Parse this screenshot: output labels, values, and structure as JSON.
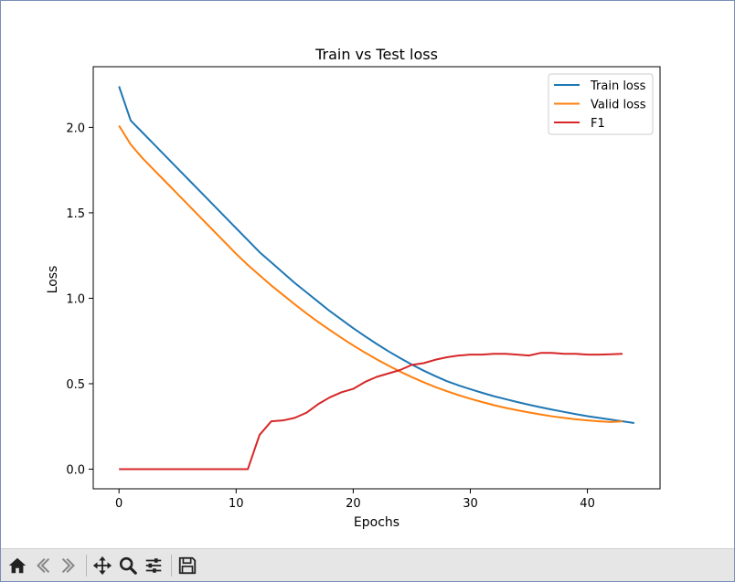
{
  "chart_data": {
    "type": "line",
    "title": "Train vs Test loss",
    "xlabel": "Epochs",
    "ylabel": "Loss",
    "xlim": [
      -2.2,
      46.2
    ],
    "ylim": [
      -0.115,
      2.355
    ],
    "xticks": [
      0,
      10,
      20,
      30,
      40
    ],
    "yticks": [
      0.0,
      0.5,
      1.0,
      1.5,
      2.0
    ],
    "ytick_labels": [
      "0.0",
      "0.5",
      "1.0",
      "1.5",
      "2.0"
    ],
    "legend_position": "upper right",
    "grid": false,
    "series": [
      {
        "name": "Train loss",
        "color": "#1f77b4",
        "x": [
          0,
          1,
          2,
          3,
          4,
          5,
          6,
          7,
          8,
          9,
          10,
          11,
          12,
          13,
          14,
          15,
          16,
          17,
          18,
          19,
          20,
          21,
          22,
          23,
          24,
          25,
          26,
          27,
          28,
          29,
          30,
          31,
          32,
          33,
          34,
          35,
          36,
          37,
          38,
          39,
          40,
          41,
          42,
          43,
          44
        ],
        "y": [
          2.24,
          2.04,
          1.97,
          1.9,
          1.83,
          1.76,
          1.69,
          1.62,
          1.55,
          1.48,
          1.41,
          1.34,
          1.27,
          1.21,
          1.15,
          1.09,
          1.035,
          0.98,
          0.925,
          0.875,
          0.825,
          0.778,
          0.733,
          0.69,
          0.65,
          0.612,
          0.577,
          0.545,
          0.515,
          0.49,
          0.468,
          0.447,
          0.427,
          0.41,
          0.393,
          0.377,
          0.362,
          0.348,
          0.335,
          0.322,
          0.31,
          0.3,
          0.29,
          0.28,
          0.27
        ]
      },
      {
        "name": "Valid loss",
        "color": "#ff7f0e",
        "x": [
          0,
          1,
          2,
          3,
          4,
          5,
          6,
          7,
          8,
          9,
          10,
          11,
          12,
          13,
          14,
          15,
          16,
          17,
          18,
          19,
          20,
          21,
          22,
          23,
          24,
          25,
          26,
          27,
          28,
          29,
          30,
          31,
          32,
          33,
          34,
          35,
          36,
          37,
          38,
          39,
          40,
          41,
          42,
          43
        ],
        "y": [
          2.01,
          1.9,
          1.82,
          1.75,
          1.68,
          1.61,
          1.54,
          1.47,
          1.4,
          1.33,
          1.26,
          1.195,
          1.135,
          1.075,
          1.02,
          0.965,
          0.912,
          0.862,
          0.814,
          0.768,
          0.724,
          0.682,
          0.643,
          0.606,
          0.571,
          0.539,
          0.509,
          0.481,
          0.456,
          0.433,
          0.412,
          0.393,
          0.375,
          0.359,
          0.345,
          0.332,
          0.32,
          0.309,
          0.3,
          0.292,
          0.285,
          0.28,
          0.276,
          0.28
        ]
      },
      {
        "name": "F1",
        "color": "#d62728",
        "x": [
          0,
          1,
          2,
          3,
          4,
          5,
          6,
          7,
          8,
          9,
          10,
          11,
          12,
          13,
          14,
          15,
          16,
          17,
          18,
          19,
          20,
          21,
          22,
          23,
          24,
          25,
          26,
          27,
          28,
          29,
          30,
          31,
          32,
          33,
          34,
          35,
          36,
          37,
          38,
          39,
          40,
          41,
          42,
          43
        ],
        "y": [
          0,
          0,
          0,
          0,
          0,
          0,
          0,
          0,
          0,
          0,
          0,
          0,
          0.2,
          0.28,
          0.285,
          0.3,
          0.33,
          0.38,
          0.42,
          0.45,
          0.47,
          0.51,
          0.54,
          0.56,
          0.58,
          0.61,
          0.62,
          0.64,
          0.655,
          0.665,
          0.67,
          0.67,
          0.675,
          0.675,
          0.67,
          0.665,
          0.68,
          0.68,
          0.675,
          0.675,
          0.67,
          0.67,
          0.672,
          0.675
        ]
      }
    ]
  },
  "toolbar": {
    "buttons": [
      {
        "name": "home-button",
        "icon": "home-icon"
      },
      {
        "name": "back-button",
        "icon": "back-arrow-icon"
      },
      {
        "name": "forward-button",
        "icon": "forward-arrow-icon"
      },
      {
        "name": "pan-button",
        "icon": "move-icon"
      },
      {
        "name": "zoom-button",
        "icon": "magnifier-icon"
      },
      {
        "name": "configure-subplots-button",
        "icon": "sliders-icon"
      },
      {
        "name": "save-button",
        "icon": "floppy-disk-icon"
      }
    ]
  }
}
